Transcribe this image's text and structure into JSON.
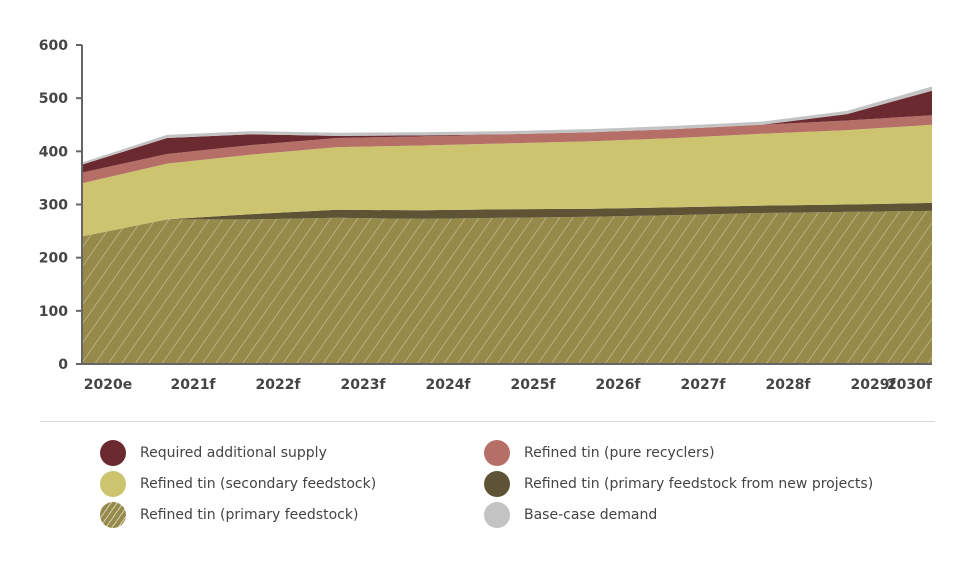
{
  "chart_data": {
    "type": "area",
    "stacked": true,
    "categories": [
      "2020e",
      "2021f",
      "2022f",
      "2023f",
      "2024f",
      "2025f",
      "2026f",
      "2027f",
      "2028f",
      "2029f",
      "2030f"
    ],
    "ylim": [
      0,
      600
    ],
    "yticks": [
      0,
      100,
      200,
      300,
      400,
      500,
      600
    ],
    "grid": false,
    "legend_position": "bottom",
    "series": [
      {
        "name": "Refined tin (primary feedstock)",
        "color": "#968a4a",
        "pattern": "hatch",
        "values": [
          240,
          272,
          272,
          275,
          273,
          275,
          277,
          280,
          284,
          286,
          288
        ]
      },
      {
        "name": "Refined tin (primary feedstock from new projects)",
        "color": "#5e5335",
        "values": [
          0,
          0,
          10,
          15,
          16,
          16,
          15,
          15,
          14,
          14,
          15
        ]
      },
      {
        "name": "Refined tin (secondary feedstock)",
        "color": "#cdc470",
        "values": [
          100,
          105,
          112,
          118,
          122,
          124,
          127,
          130,
          135,
          140,
          147
        ]
      },
      {
        "name": "Refined tin (pure recyclers)",
        "color": "#b56f67",
        "values": [
          20,
          18,
          18,
          17,
          17,
          17,
          17,
          17,
          17,
          18,
          18
        ]
      },
      {
        "name": "Required additional supply",
        "color": "#6b2a30",
        "values": [
          15,
          30,
          20,
          4,
          2,
          0,
          0,
          0,
          0,
          12,
          46
        ]
      },
      {
        "name": "Base-case demand",
        "color": "#c3c3c3",
        "values": [
          4,
          6,
          6,
          6,
          6,
          6,
          6,
          6,
          6,
          6,
          8
        ]
      }
    ]
  },
  "legend": [
    {
      "label": "Required additional supply",
      "color": "#6b2a30",
      "hatch": false
    },
    {
      "label": "Refined tin (pure recyclers)",
      "color": "#b56f67",
      "hatch": false
    },
    {
      "label": "Refined tin (secondary feedstock)",
      "color": "#cdc470",
      "hatch": false
    },
    {
      "label": "Refined tin (primary feedstock from new projects)",
      "color": "#5e5335",
      "hatch": false
    },
    {
      "label": "Refined tin (primary feedstock)",
      "color": "#968a4a",
      "hatch": true
    },
    {
      "label": "Base-case demand",
      "color": "#c3c3c3",
      "hatch": false
    }
  ]
}
